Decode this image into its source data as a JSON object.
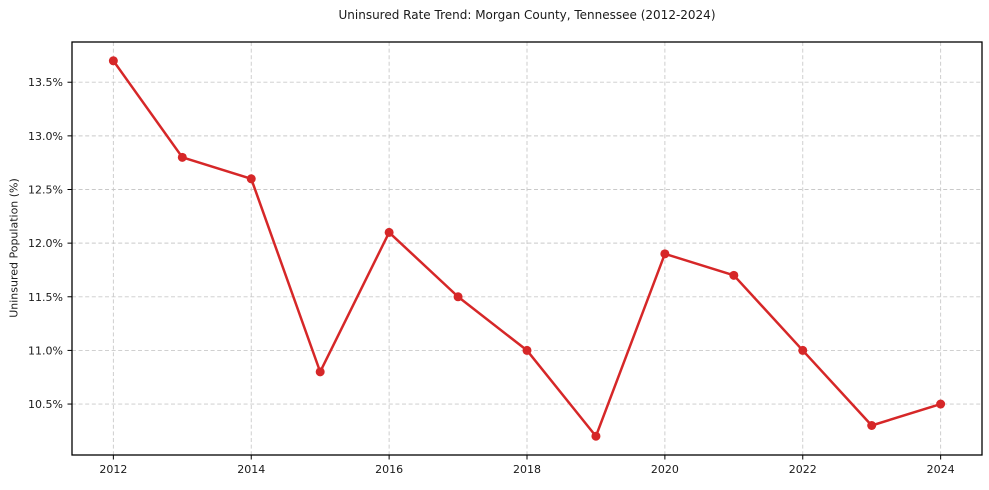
{
  "chart_data": {
    "type": "line",
    "title": "Uninsured Rate Trend: Morgan County, Tennessee (2012-2024)",
    "xlabel": "",
    "ylabel": "Uninsured Population (%)",
    "x": [
      2012,
      2013,
      2014,
      2015,
      2016,
      2017,
      2018,
      2019,
      2020,
      2021,
      2022,
      2023,
      2024
    ],
    "series": [
      {
        "name": "Uninsured Population (%)",
        "values": [
          13.7,
          12.8,
          12.6,
          10.8,
          12.1,
          11.5,
          11.0,
          10.2,
          11.9,
          11.7,
          11.0,
          10.3,
          10.5
        ],
        "color": "#d62728",
        "marker": "circle"
      }
    ],
    "xlim": [
      2011.4,
      2024.6
    ],
    "ylim": [
      10.025,
      13.875
    ],
    "xticks": {
      "values": [
        2012,
        2014,
        2016,
        2018,
        2020,
        2022,
        2024
      ],
      "labels": [
        "2012",
        "2014",
        "2016",
        "2018",
        "2020",
        "2022",
        "2024"
      ]
    },
    "yticks": {
      "values": [
        10.5,
        11.0,
        11.5,
        12.0,
        12.5,
        13.0,
        13.5
      ],
      "labels": [
        "10.5%",
        "11.0%",
        "11.5%",
        "12.0%",
        "12.5%",
        "13.0%",
        "13.5%"
      ]
    },
    "grid": true,
    "grid_color": "#c9c9c9",
    "legend": "none",
    "background": "#ffffff"
  }
}
